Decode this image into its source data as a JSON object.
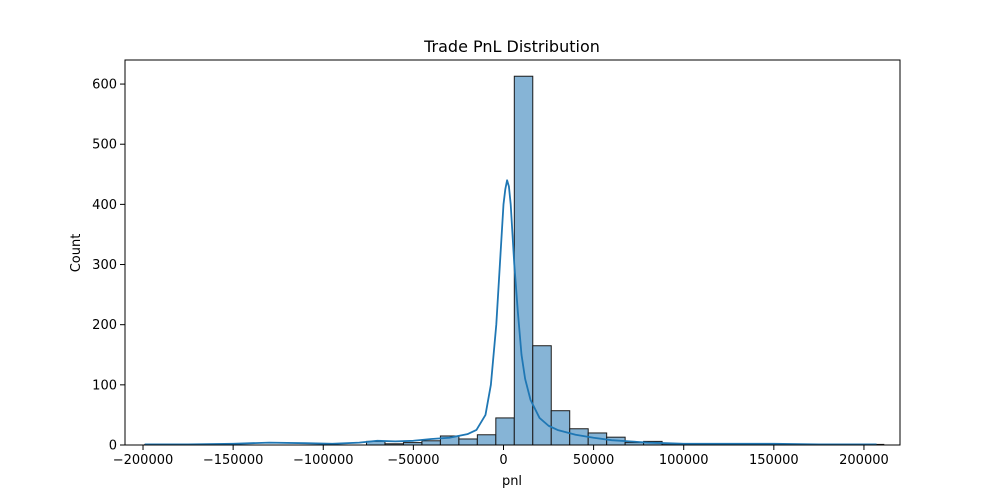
{
  "chart_data": {
    "type": "bar",
    "subtype": "histogram-with-kde",
    "title": "Trade PnL Distribution",
    "xlabel": "pnl",
    "ylabel": "Count",
    "xlim": [
      -210000,
      220000
    ],
    "ylim": [
      0,
      640
    ],
    "xticks": [
      -200000,
      -150000,
      -100000,
      -50000,
      0,
      50000,
      100000,
      150000,
      200000
    ],
    "xtick_labels": [
      "−200000",
      "−150000",
      "−100000",
      "−50000",
      "0",
      "50000",
      "100000",
      "150000",
      "200000"
    ],
    "yticks": [
      0,
      100,
      200,
      300,
      400,
      500,
      600
    ],
    "ytick_labels": [
      "0",
      "100",
      "200",
      "300",
      "400",
      "500",
      "600"
    ],
    "grid": false,
    "bins": {
      "start": -199000,
      "width": 10250,
      "counts": [
        1,
        0,
        0,
        0,
        0,
        0,
        0,
        0,
        0,
        0,
        0,
        0,
        6,
        2,
        4,
        7,
        15,
        10,
        17,
        45,
        613,
        165,
        57,
        27,
        20,
        13,
        4,
        6,
        2,
        1,
        0,
        0,
        0,
        0,
        0,
        0,
        0,
        0,
        0,
        1
      ]
    },
    "kde": {
      "x": [
        -199000,
        -175000,
        -150000,
        -130000,
        -110000,
        -95000,
        -80000,
        -70000,
        -60000,
        -50000,
        -40000,
        -30000,
        -20000,
        -15000,
        -10000,
        -7000,
        -4000,
        -2000,
        0,
        1000,
        2000,
        3000,
        4000,
        5000,
        6000,
        8000,
        10000,
        12000,
        15000,
        20000,
        25000,
        30000,
        40000,
        50000,
        60000,
        70000,
        80000,
        90000,
        100000,
        125000,
        150000,
        175000,
        207000
      ],
      "y": [
        1,
        1,
        2,
        4,
        3,
        2,
        4,
        7,
        6,
        7,
        10,
        12,
        18,
        25,
        50,
        100,
        200,
        300,
        400,
        425,
        440,
        430,
        400,
        350,
        300,
        220,
        150,
        110,
        75,
        45,
        32,
        25,
        17,
        12,
        8,
        6,
        4,
        3,
        2,
        2,
        2,
        1,
        1
      ]
    },
    "colors": {
      "bar_fill": "#86b4d6",
      "bar_edge": "#1a1a1a",
      "kde_line": "#1f77b4"
    }
  }
}
